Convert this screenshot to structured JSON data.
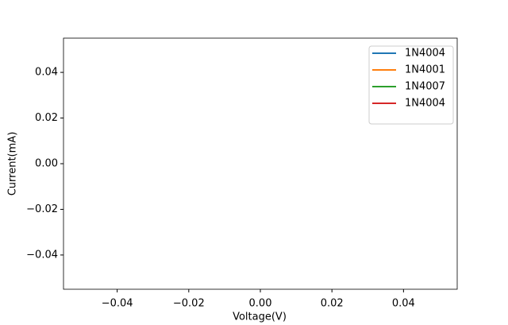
{
  "chart_data": {
    "type": "line",
    "xlabel": "Voltage(V)",
    "ylabel": "Current(mA)",
    "x": [],
    "series": [
      {
        "name": "1N4004",
        "color": "#1f77b4",
        "values": []
      },
      {
        "name": "1N4001",
        "color": "#ff7f0e",
        "values": []
      },
      {
        "name": "1N4007",
        "color": "#2ca02c",
        "values": []
      },
      {
        "name": "1N4004",
        "color": "#d62728",
        "values": []
      }
    ],
    "xlim": [
      -0.055,
      0.055
    ],
    "xticks": [
      {
        "value": -0.04,
        "label": "−0.04"
      },
      {
        "value": -0.02,
        "label": "−0.02"
      },
      {
        "value": 0,
        "label": "0.00"
      },
      0.02,
      0.04
    ],
    "ylim": [
      -0.055,
      0.055
    ],
    "yticks": [
      {
        "value": -0.04,
        "label": "−0.04"
      },
      {
        "value": -0.02,
        "label": "−0.02"
      },
      {
        "value": 0,
        "label": "0.00"
      },
      0.02,
      0.04
    ],
    "legend": "upper right"
  }
}
